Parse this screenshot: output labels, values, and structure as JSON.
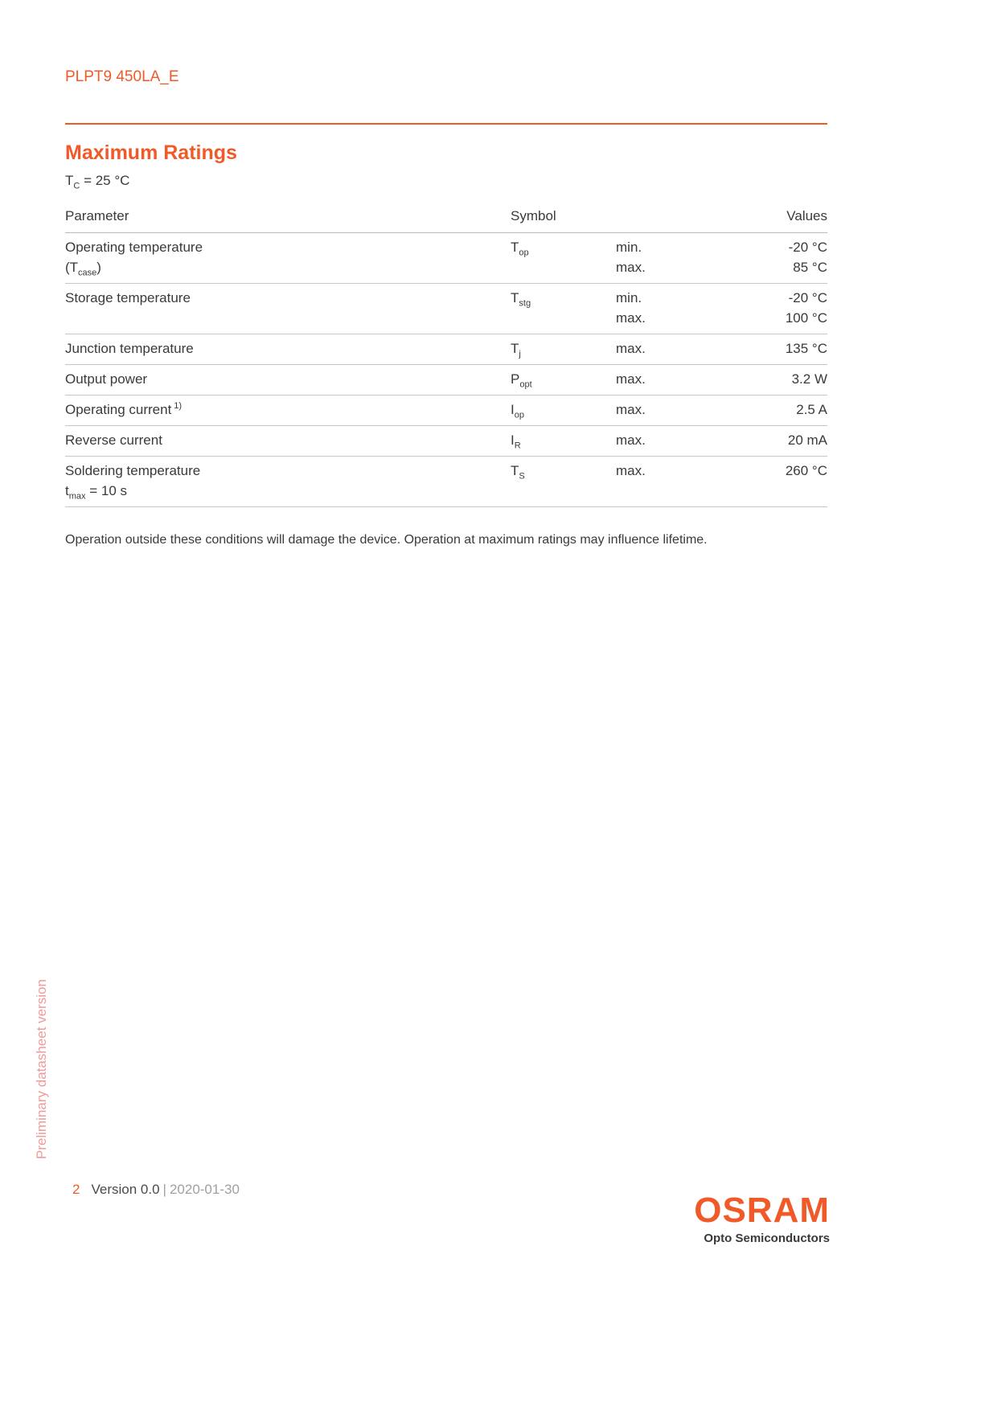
{
  "header": {
    "product": "PLPT9 450LA_E"
  },
  "section": {
    "title": "Maximum Ratings",
    "condition": {
      "pre": "T",
      "sub": "C",
      "post": " = 25 °C"
    }
  },
  "table": {
    "col_parameter": "Parameter",
    "col_symbol": "Symbol",
    "col_values": "Values",
    "rows": [
      {
        "param": "Operating temperature",
        "param2_pre": "(T",
        "param2_sub": "case",
        "param2_post": ")",
        "sym": "T",
        "sym_sub": "op",
        "limits": [
          "min.",
          "max."
        ],
        "values": [
          "-20 °C",
          "85 °C"
        ]
      },
      {
        "param": "Storage temperature",
        "sym": "T",
        "sym_sub": "stg",
        "limits": [
          "min.",
          "max."
        ],
        "values": [
          "-20 °C",
          "100 °C"
        ]
      },
      {
        "param": "Junction temperature",
        "sym": "T",
        "sym_sub": "j",
        "limits": [
          "max."
        ],
        "values": [
          "135 °C"
        ]
      },
      {
        "param": "Output power",
        "sym": "P",
        "sym_sub": "opt",
        "limits": [
          "max."
        ],
        "values": [
          "3.2 W"
        ]
      },
      {
        "param": "Operating current",
        "param_sup": "1)",
        "sym": "I",
        "sym_sub": "op",
        "limits": [
          "max."
        ],
        "values": [
          "2.5 A"
        ]
      },
      {
        "param": "Reverse current",
        "sym": "I",
        "sym_sub": "R",
        "limits": [
          "max."
        ],
        "values": [
          "20 mA"
        ]
      },
      {
        "param": "Soldering temperature",
        "param2_pre": "t",
        "param2_sub": "max",
        "param2_post": " = 10 s",
        "sym": "T",
        "sym_sub": "S",
        "limits": [
          "max."
        ],
        "values": [
          "260 °C"
        ]
      }
    ]
  },
  "note": "Operation outside these conditions will damage the device. Operation at maximum ratings may influence lifetime.",
  "watermark": "Preliminary datasheet version",
  "footer": {
    "page": "2",
    "version": "Version 0.0",
    "separator": "|",
    "date": "2020-01-30"
  },
  "brand": {
    "logo": "OSRAM",
    "tagline": "Opto Semiconductors"
  },
  "colors": {
    "accent": "#f05a28",
    "watermark": "#ef9a9a",
    "text": "#3a3a3a",
    "muted": "#a0a0a0",
    "line": "#c6c6c6"
  }
}
